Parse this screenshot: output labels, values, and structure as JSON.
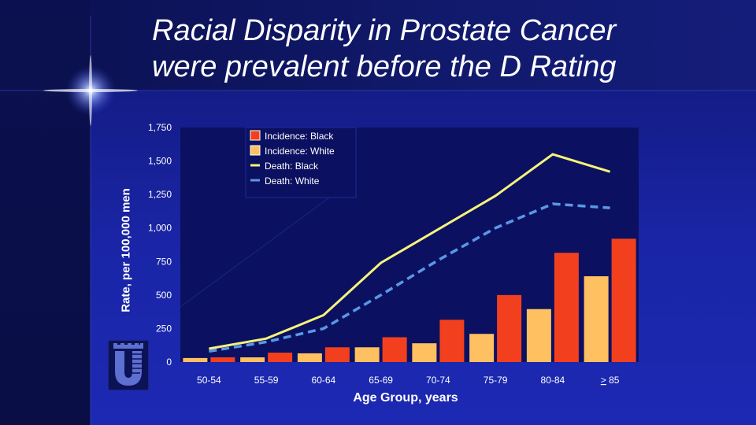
{
  "slide": {
    "title_line1": "Racial Disparity in Prostate Cancer",
    "title_line2": "were prevalent before the D Rating"
  },
  "colors": {
    "incidence_black": "#f2401f",
    "incidence_white": "#ffc061",
    "death_black": "#f6f37a",
    "death_white": "#5b97e6",
    "plot_bg": "#0b1160"
  },
  "chart_data": {
    "type": "bar",
    "categories": [
      "50-54",
      "55-59",
      "60-64",
      "65-69",
      "70-74",
      "75-79",
      "80-84",
      "> 85"
    ],
    "x_tick_labels": [
      {
        "prefix": "",
        "underlined": "",
        "suffix": "50-54"
      },
      {
        "prefix": "",
        "underlined": "",
        "suffix": "55-59"
      },
      {
        "prefix": "",
        "underlined": "",
        "suffix": "60-64"
      },
      {
        "prefix": "",
        "underlined": "",
        "suffix": "65-69"
      },
      {
        "prefix": "",
        "underlined": "",
        "suffix": "70-74"
      },
      {
        "prefix": "",
        "underlined": "",
        "suffix": "75-79"
      },
      {
        "prefix": "",
        "underlined": "",
        "suffix": "80-84"
      },
      {
        "prefix": "",
        "underlined": ">",
        "suffix": " 85"
      }
    ],
    "series": [
      {
        "name": "Incidence: White",
        "kind": "bar",
        "values": [
          30,
          35,
          65,
          110,
          140,
          210,
          395,
          640
        ]
      },
      {
        "name": "Incidence: Black",
        "kind": "bar",
        "values": [
          35,
          70,
          110,
          185,
          315,
          500,
          815,
          920
        ]
      },
      {
        "name": "Death: Black",
        "kind": "line",
        "style": "solid",
        "values": [
          100,
          175,
          350,
          740,
          990,
          1240,
          1550,
          1420
        ]
      },
      {
        "name": "Death: White",
        "kind": "line",
        "style": "dashed",
        "values": [
          80,
          150,
          250,
          500,
          760,
          1000,
          1180,
          1150
        ]
      }
    ],
    "legend": [
      "Incidence: Black",
      "Incidence: White",
      "Death: Black",
      "Death: White"
    ],
    "legend_position": "top-right",
    "y_ticks": [
      0,
      250,
      500,
      750,
      1000,
      1250,
      1500,
      1750
    ],
    "y_tick_labels": [
      "0",
      "250",
      "500",
      "750",
      "1,000",
      "1,250",
      "1,500",
      "1,750"
    ],
    "ylim": [
      0,
      1750
    ],
    "xlabel": "Age Group, years",
    "ylabel": "Rate, per 100,000 men"
  }
}
